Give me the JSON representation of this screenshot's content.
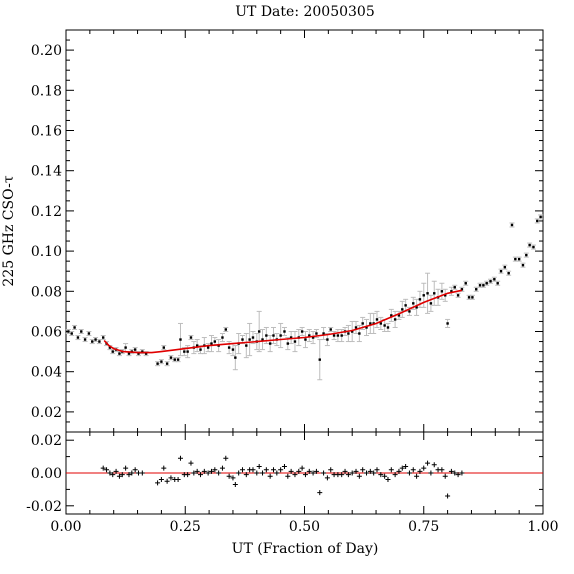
{
  "chart_data": {
    "type": "scatter",
    "title": "UT Date: 20050305",
    "xlabel": "UT (Fraction of Day)",
    "ylabel": "225 GHz CSO-τ",
    "xlim": [
      0,
      1
    ],
    "xticks": [
      "0.00",
      "0.25",
      "0.50",
      "0.75",
      "1.00"
    ],
    "main_panel": {
      "ylim": [
        0.01,
        0.21
      ],
      "yticks": [
        "0.02",
        "0.04",
        "0.06",
        "0.08",
        "0.10",
        "0.12",
        "0.14",
        "0.16",
        "0.18",
        "0.20"
      ],
      "series": [
        {
          "type": "scatter_errorbar",
          "points": [
            [
              0.005,
              0.06,
              0.001
            ],
            [
              0.012,
              0.059,
              0.001
            ],
            [
              0.018,
              0.062,
              0.001
            ],
            [
              0.025,
              0.057,
              0.001
            ],
            [
              0.032,
              0.06,
              0.001
            ],
            [
              0.04,
              0.056,
              0.001
            ],
            [
              0.048,
              0.059,
              0.001
            ],
            [
              0.055,
              0.055,
              0.001
            ],
            [
              0.062,
              0.056,
              0.001
            ],
            [
              0.07,
              0.055,
              0.001
            ],
            [
              0.078,
              0.057,
              0.001
            ],
            [
              0.085,
              0.054,
              0.001
            ],
            [
              0.092,
              0.052,
              0.001
            ],
            [
              0.098,
              0.05,
              0.001
            ],
            [
              0.105,
              0.051,
              0.001
            ],
            [
              0.112,
              0.049,
              0.001
            ],
            [
              0.118,
              0.05,
              0.001
            ],
            [
              0.125,
              0.052,
              0.002
            ],
            [
              0.132,
              0.049,
              0.001
            ],
            [
              0.138,
              0.05,
              0.001
            ],
            [
              0.145,
              0.051,
              0.001
            ],
            [
              0.152,
              0.049,
              0.001
            ],
            [
              0.16,
              0.05,
              0.001
            ],
            [
              0.168,
              0.049,
              0.001
            ],
            [
              0.192,
              0.044,
              0.001
            ],
            [
              0.2,
              0.045,
              0.001
            ],
            [
              0.205,
              0.052,
              0.001
            ],
            [
              0.212,
              0.044,
              0.001
            ],
            [
              0.22,
              0.047,
              0.001
            ],
            [
              0.228,
              0.046,
              0.001
            ],
            [
              0.235,
              0.046,
              0.001
            ],
            [
              0.24,
              0.056,
              0.008
            ],
            [
              0.248,
              0.05,
              0.002
            ],
            [
              0.255,
              0.05,
              0.003
            ],
            [
              0.262,
              0.057,
              0.001
            ],
            [
              0.268,
              0.052,
              0.003
            ],
            [
              0.275,
              0.053,
              0.003
            ],
            [
              0.282,
              0.051,
              0.002
            ],
            [
              0.29,
              0.053,
              0.004
            ],
            [
              0.298,
              0.052,
              0.002
            ],
            [
              0.305,
              0.054,
              0.004
            ],
            [
              0.312,
              0.055,
              0.002
            ],
            [
              0.32,
              0.053,
              0.003
            ],
            [
              0.328,
              0.057,
              0.002
            ],
            [
              0.335,
              0.061,
              0.001
            ],
            [
              0.342,
              0.052,
              0.003
            ],
            [
              0.35,
              0.051,
              0.003
            ],
            [
              0.355,
              0.047,
              0.006
            ],
            [
              0.362,
              0.054,
              0.005
            ],
            [
              0.37,
              0.056,
              0.002
            ],
            [
              0.378,
              0.053,
              0.006
            ],
            [
              0.385,
              0.056,
              0.008
            ],
            [
              0.392,
              0.057,
              0.003
            ],
            [
              0.4,
              0.055,
              0.004
            ],
            [
              0.405,
              0.06,
              0.01
            ],
            [
              0.412,
              0.056,
              0.005
            ],
            [
              0.42,
              0.058,
              0.004
            ],
            [
              0.428,
              0.054,
              0.004
            ],
            [
              0.435,
              0.058,
              0.004
            ],
            [
              0.442,
              0.056,
              0.003
            ],
            [
              0.45,
              0.058,
              0.006
            ],
            [
              0.458,
              0.06,
              0.002
            ],
            [
              0.465,
              0.054,
              0.003
            ],
            [
              0.472,
              0.057,
              0.003
            ],
            [
              0.48,
              0.055,
              0.005
            ],
            [
              0.488,
              0.057,
              0.004
            ],
            [
              0.495,
              0.06,
              0.002
            ],
            [
              0.502,
              0.056,
              0.004
            ],
            [
              0.51,
              0.058,
              0.003
            ],
            [
              0.518,
              0.057,
              0.003
            ],
            [
              0.525,
              0.059,
              0.002
            ],
            [
              0.532,
              0.046,
              0.01
            ],
            [
              0.54,
              0.059,
              0.003
            ],
            [
              0.548,
              0.056,
              0.003
            ],
            [
              0.555,
              0.061,
              0.001
            ],
            [
              0.562,
              0.058,
              0.002
            ],
            [
              0.57,
              0.058,
              0.003
            ],
            [
              0.578,
              0.058,
              0.003
            ],
            [
              0.585,
              0.06,
              0.002
            ],
            [
              0.592,
              0.059,
              0.004
            ],
            [
              0.6,
              0.06,
              0.005
            ],
            [
              0.608,
              0.062,
              0.003
            ],
            [
              0.615,
              0.059,
              0.004
            ],
            [
              0.622,
              0.064,
              0.003
            ],
            [
              0.63,
              0.062,
              0.004
            ],
            [
              0.638,
              0.064,
              0.005
            ],
            [
              0.645,
              0.064,
              0.005
            ],
            [
              0.652,
              0.066,
              0.004
            ],
            [
              0.66,
              0.064,
              0.003
            ],
            [
              0.668,
              0.063,
              0.003
            ],
            [
              0.675,
              0.062,
              0.002
            ],
            [
              0.682,
              0.068,
              0.003
            ],
            [
              0.69,
              0.066,
              0.004
            ],
            [
              0.698,
              0.068,
              0.002
            ],
            [
              0.705,
              0.071,
              0.004
            ],
            [
              0.712,
              0.073,
              0.003
            ],
            [
              0.72,
              0.07,
              0.002
            ],
            [
              0.728,
              0.074,
              0.003
            ],
            [
              0.735,
              0.072,
              0.004
            ],
            [
              0.742,
              0.076,
              0.004
            ],
            [
              0.75,
              0.078,
              0.006
            ],
            [
              0.758,
              0.079,
              0.01
            ],
            [
              0.765,
              0.074,
              0.004
            ],
            [
              0.772,
              0.079,
              0.006
            ],
            [
              0.78,
              0.077,
              0.004
            ],
            [
              0.788,
              0.08,
              0.004
            ],
            [
              0.795,
              0.078,
              0.003
            ],
            [
              0.8,
              0.064,
              0.002
            ],
            [
              0.808,
              0.08,
              0.002
            ],
            [
              0.815,
              0.082,
              0.001
            ],
            [
              0.822,
              0.078,
              0.001
            ],
            [
              0.83,
              0.081,
              0.001
            ],
            [
              0.838,
              0.084,
              0.001
            ],
            [
              0.845,
              0.077,
              0.001
            ],
            [
              0.852,
              0.077,
              0.001
            ],
            [
              0.86,
              0.081,
              0.001
            ],
            [
              0.868,
              0.083,
              0.001
            ],
            [
              0.875,
              0.083,
              0.001
            ],
            [
              0.882,
              0.084,
              0.001
            ],
            [
              0.89,
              0.085,
              0.001
            ],
            [
              0.898,
              0.086,
              0.001
            ],
            [
              0.905,
              0.084,
              0.001
            ],
            [
              0.912,
              0.09,
              0.001
            ],
            [
              0.92,
              0.092,
              0.001
            ],
            [
              0.928,
              0.089,
              0.001
            ],
            [
              0.935,
              0.113,
              0.001
            ],
            [
              0.942,
              0.096,
              0.001
            ],
            [
              0.95,
              0.096,
              0.001
            ],
            [
              0.958,
              0.093,
              0.001
            ],
            [
              0.965,
              0.098,
              0.001
            ],
            [
              0.972,
              0.103,
              0.001
            ],
            [
              0.98,
              0.102,
              0.001
            ],
            [
              0.988,
              0.115,
              0.001
            ],
            [
              0.995,
              0.117,
              0.001
            ]
          ]
        },
        {
          "type": "fit_line",
          "color": "#e00000",
          "points": [
            [
              0.08,
              0.0555
            ],
            [
              0.09,
              0.053
            ],
            [
              0.1,
              0.0515
            ],
            [
              0.12,
              0.05
            ],
            [
              0.15,
              0.0495
            ],
            [
              0.18,
              0.0495
            ],
            [
              0.2,
              0.05
            ],
            [
              0.25,
              0.0515
            ],
            [
              0.3,
              0.053
            ],
            [
              0.35,
              0.054
            ],
            [
              0.4,
              0.055
            ],
            [
              0.45,
              0.056
            ],
            [
              0.5,
              0.057
            ],
            [
              0.55,
              0.0585
            ],
            [
              0.6,
              0.0605
            ],
            [
              0.65,
              0.064
            ],
            [
              0.7,
              0.069
            ],
            [
              0.75,
              0.0745
            ],
            [
              0.8,
              0.079
            ],
            [
              0.83,
              0.0805
            ]
          ]
        }
      ]
    },
    "residual_panel": {
      "ylim": [
        -0.025,
        0.025
      ],
      "yticks": [
        "0.02",
        "0.00",
        "-0.02"
      ],
      "zero_line_color": "#e00000",
      "points": [
        [
          0.078,
          0.003
        ],
        [
          0.085,
          0.002
        ],
        [
          0.092,
          0.0
        ],
        [
          0.098,
          -0.001
        ],
        [
          0.105,
          0.001
        ],
        [
          0.112,
          -0.002
        ],
        [
          0.118,
          -0.001
        ],
        [
          0.125,
          0.003
        ],
        [
          0.132,
          -0.001
        ],
        [
          0.138,
          0.0
        ],
        [
          0.145,
          0.002
        ],
        [
          0.152,
          0.0
        ],
        [
          0.16,
          0.0
        ],
        [
          0.192,
          -0.006
        ],
        [
          0.2,
          -0.004
        ],
        [
          0.205,
          0.003
        ],
        [
          0.212,
          -0.005
        ],
        [
          0.22,
          -0.003
        ],
        [
          0.228,
          -0.004
        ],
        [
          0.235,
          -0.004
        ],
        [
          0.24,
          0.009
        ],
        [
          0.248,
          -0.001
        ],
        [
          0.255,
          -0.001
        ],
        [
          0.262,
          0.006
        ],
        [
          0.268,
          0.0
        ],
        [
          0.275,
          0.001
        ],
        [
          0.282,
          -0.001
        ],
        [
          0.29,
          0.001
        ],
        [
          0.298,
          0.0
        ],
        [
          0.305,
          0.001
        ],
        [
          0.312,
          0.002
        ],
        [
          0.32,
          0.0
        ],
        [
          0.328,
          0.003
        ],
        [
          0.335,
          0.009
        ],
        [
          0.342,
          -0.002
        ],
        [
          0.35,
          -0.003
        ],
        [
          0.355,
          -0.007
        ],
        [
          0.362,
          0.0
        ],
        [
          0.37,
          0.002
        ],
        [
          0.378,
          -0.001
        ],
        [
          0.385,
          0.002
        ],
        [
          0.392,
          0.002
        ],
        [
          0.4,
          0.0
        ],
        [
          0.405,
          0.004
        ],
        [
          0.412,
          0.0
        ],
        [
          0.42,
          0.002
        ],
        [
          0.428,
          -0.002
        ],
        [
          0.435,
          0.002
        ],
        [
          0.442,
          0.0
        ],
        [
          0.45,
          0.002
        ],
        [
          0.458,
          0.004
        ],
        [
          0.465,
          -0.002
        ],
        [
          0.472,
          0.001
        ],
        [
          0.48,
          -0.001
        ],
        [
          0.488,
          0.001
        ],
        [
          0.495,
          0.003
        ],
        [
          0.502,
          -0.001
        ],
        [
          0.51,
          0.001
        ],
        [
          0.518,
          0.0
        ],
        [
          0.525,
          0.001
        ],
        [
          0.532,
          -0.012
        ],
        [
          0.54,
          0.0
        ],
        [
          0.548,
          -0.003
        ],
        [
          0.555,
          0.002
        ],
        [
          0.562,
          -0.001
        ],
        [
          0.57,
          -0.001
        ],
        [
          0.578,
          -0.001
        ],
        [
          0.585,
          0.001
        ],
        [
          0.592,
          -0.001
        ],
        [
          0.6,
          0.0
        ],
        [
          0.608,
          0.001
        ],
        [
          0.615,
          -0.002
        ],
        [
          0.622,
          0.002
        ],
        [
          0.63,
          0.0
        ],
        [
          0.638,
          0.001
        ],
        [
          0.645,
          0.0
        ],
        [
          0.652,
          0.002
        ],
        [
          0.66,
          -0.001
        ],
        [
          0.668,
          -0.002
        ],
        [
          0.675,
          -0.004
        ],
        [
          0.682,
          0.002
        ],
        [
          0.69,
          -0.001
        ],
        [
          0.698,
          0.001
        ],
        [
          0.705,
          0.003
        ],
        [
          0.712,
          0.004
        ],
        [
          0.72,
          0.0
        ],
        [
          0.728,
          0.002
        ],
        [
          0.735,
          -0.002
        ],
        [
          0.742,
          0.001
        ],
        [
          0.75,
          0.003
        ],
        [
          0.758,
          0.006
        ],
        [
          0.765,
          0.0
        ],
        [
          0.772,
          0.005
        ],
        [
          0.78,
          0.002
        ],
        [
          0.788,
          0.002
        ],
        [
          0.795,
          -0.002
        ],
        [
          0.8,
          -0.014
        ],
        [
          0.808,
          0.001
        ],
        [
          0.815,
          0.0
        ],
        [
          0.822,
          -0.001
        ],
        [
          0.83,
          0.0
        ]
      ]
    }
  }
}
